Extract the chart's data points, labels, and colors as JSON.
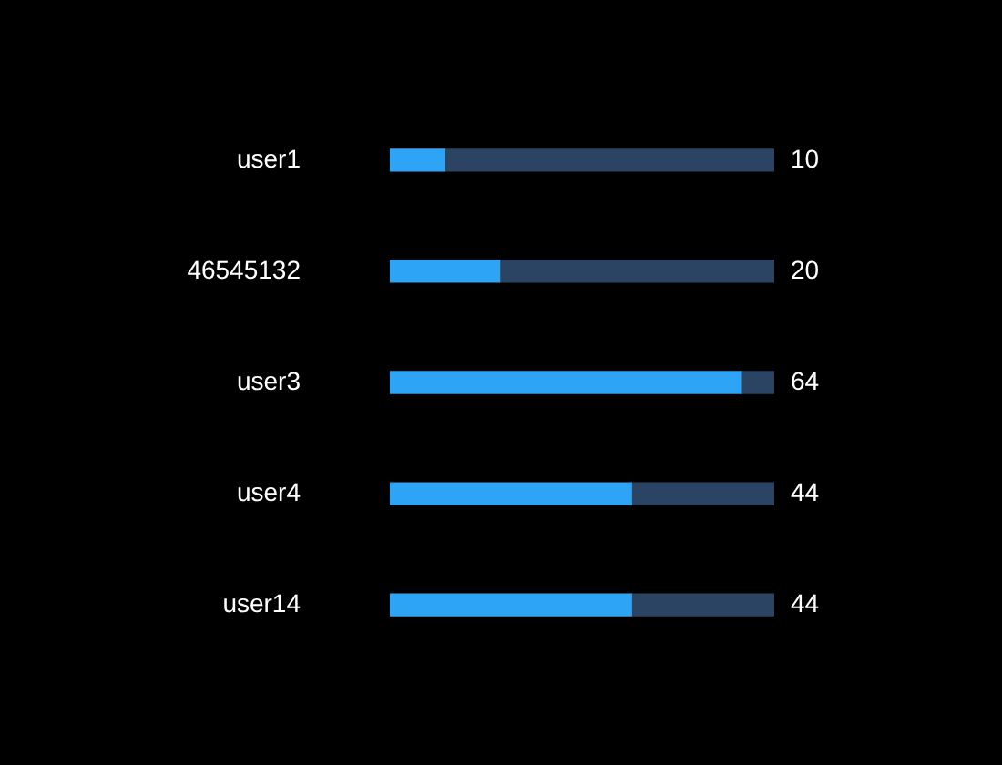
{
  "chart_data": {
    "type": "bar",
    "orientation": "horizontal",
    "stacked": true,
    "categories": [
      "user1",
      "46545132",
      "user3",
      "user4",
      "user14"
    ],
    "series": [
      {
        "color": "#2ea4f7",
        "values": [
          10,
          20,
          64,
          44,
          44
        ],
        "value_labels": [
          "10",
          "20",
          "64",
          "44",
          "44"
        ]
      },
      {
        "color": "#2b4463",
        "values": [
          60,
          50,
          6,
          26,
          26
        ]
      }
    ],
    "xlim": [
      0,
      70
    ],
    "legend": false,
    "tick_labels": "y"
  }
}
